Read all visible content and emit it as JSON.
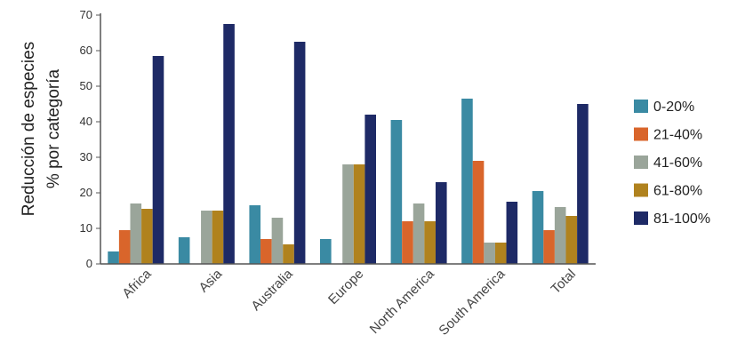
{
  "chart_data": {
    "type": "bar",
    "title": "",
    "xlabel": "",
    "ylabel_line1": "Reducción de especies",
    "ylabel_line2": "% por categoría",
    "ylim": [
      0,
      70
    ],
    "yticks": [
      0,
      10,
      20,
      30,
      40,
      50,
      60,
      70
    ],
    "grid": false,
    "legend_position": "right",
    "categories": [
      "Africa",
      "Asia",
      "Australia",
      "Europe",
      "North America",
      "South America",
      "Total"
    ],
    "series": [
      {
        "name": "0-20%",
        "color": "#3a8aa3",
        "values": [
          3.5,
          7.5,
          16.5,
          7,
          40.5,
          46.5,
          20.5
        ]
      },
      {
        "name": "21-40%",
        "color": "#d9652b",
        "values": [
          9.5,
          0,
          7,
          0,
          12,
          29,
          9.5
        ]
      },
      {
        "name": "41-60%",
        "color": "#9aa59a",
        "values": [
          17,
          15,
          13,
          28,
          17,
          6,
          16
        ]
      },
      {
        "name": "61-80%",
        "color": "#b0821e",
        "values": [
          15.5,
          15,
          5.5,
          28,
          12,
          6,
          13.5
        ]
      },
      {
        "name": "81-100%",
        "color": "#1e2a66",
        "values": [
          58.5,
          67.5,
          62.5,
          42,
          23,
          17.5,
          45
        ]
      }
    ]
  }
}
